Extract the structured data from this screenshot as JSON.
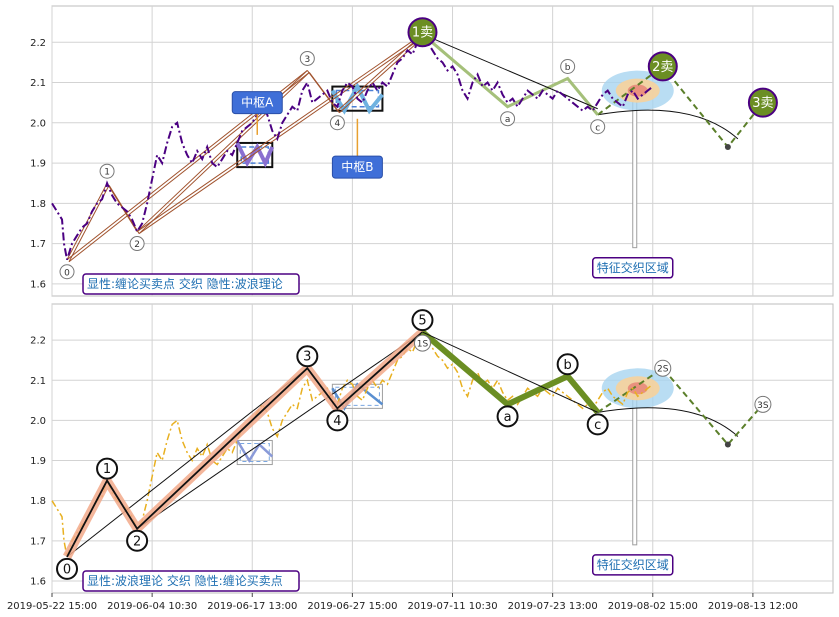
{
  "chart_data": {
    "type": "line",
    "x_ticks": [
      "2019-05-22 15:00",
      "2019-06-04 10:30",
      "2019-06-17 13:00",
      "2019-06-27 15:00",
      "2019-07-11 10:30",
      "2019-07-23 13:00",
      "2019-08-02 15:00",
      "2019-08-13 12:00"
    ],
    "x_range": [
      0,
      7.8
    ],
    "grid": true,
    "panels": [
      {
        "name": "top",
        "ylim": [
          1.57,
          2.29
        ],
        "y_ticks": [
          1.6,
          1.7,
          1.8,
          1.9,
          2.0,
          2.1,
          2.2
        ],
        "caption": "显性:缠论买卖点 交织 隐性:波浪理论",
        "price_color": "#4b0082",
        "price": [
          [
            0.0,
            1.8
          ],
          [
            0.05,
            1.78
          ],
          [
            0.1,
            1.76
          ],
          [
            0.12,
            1.7
          ],
          [
            0.15,
            1.66
          ],
          [
            0.2,
            1.7
          ],
          [
            0.25,
            1.72
          ],
          [
            0.3,
            1.74
          ],
          [
            0.35,
            1.75
          ],
          [
            0.4,
            1.78
          ],
          [
            0.45,
            1.8
          ],
          [
            0.5,
            1.81
          ],
          [
            0.55,
            1.85
          ],
          [
            0.6,
            1.82
          ],
          [
            0.65,
            1.8
          ],
          [
            0.7,
            1.79
          ],
          [
            0.75,
            1.78
          ],
          [
            0.8,
            1.76
          ],
          [
            0.85,
            1.73
          ],
          [
            0.9,
            1.75
          ],
          [
            0.95,
            1.8
          ],
          [
            1.0,
            1.86
          ],
          [
            1.05,
            1.92
          ],
          [
            1.1,
            1.9
          ],
          [
            1.15,
            1.95
          ],
          [
            1.2,
            1.99
          ],
          [
            1.25,
            2.0
          ],
          [
            1.3,
            1.95
          ],
          [
            1.35,
            1.92
          ],
          [
            1.4,
            1.9
          ],
          [
            1.45,
            1.93
          ],
          [
            1.5,
            1.91
          ],
          [
            1.55,
            1.94
          ],
          [
            1.6,
            1.9
          ],
          [
            1.65,
            1.89
          ],
          [
            1.7,
            1.91
          ],
          [
            1.75,
            1.93
          ],
          [
            1.8,
            1.92
          ],
          [
            1.85,
            1.95
          ],
          [
            1.9,
            1.98
          ],
          [
            1.95,
            1.99
          ],
          [
            2.0,
            2.0
          ],
          [
            2.05,
            2.02
          ],
          [
            2.1,
            2.04
          ],
          [
            2.15,
            2.02
          ],
          [
            2.2,
            1.98
          ],
          [
            2.25,
            1.96
          ],
          [
            2.3,
            2.0
          ],
          [
            2.35,
            2.02
          ],
          [
            2.4,
            2.04
          ],
          [
            2.45,
            2.03
          ],
          [
            2.5,
            2.08
          ],
          [
            2.55,
            2.1
          ],
          [
            2.6,
            2.05
          ],
          [
            2.65,
            2.06
          ],
          [
            2.7,
            2.07
          ],
          [
            2.75,
            2.08
          ],
          [
            2.8,
            2.05
          ],
          [
            2.85,
            2.04
          ],
          [
            2.9,
            2.08
          ],
          [
            2.95,
            2.1
          ],
          [
            3.0,
            2.09
          ],
          [
            3.05,
            2.06
          ],
          [
            3.1,
            2.05
          ],
          [
            3.15,
            2.08
          ],
          [
            3.2,
            2.1
          ],
          [
            3.25,
            2.08
          ],
          [
            3.3,
            2.1
          ],
          [
            3.35,
            2.09
          ],
          [
            3.4,
            2.12
          ],
          [
            3.45,
            2.15
          ],
          [
            3.5,
            2.16
          ],
          [
            3.55,
            2.18
          ],
          [
            3.6,
            2.17
          ],
          [
            3.65,
            2.2
          ],
          [
            3.7,
            2.22
          ],
          [
            3.75,
            2.2
          ],
          [
            3.8,
            2.18
          ],
          [
            3.85,
            2.16
          ],
          [
            3.9,
            2.15
          ],
          [
            3.95,
            2.13
          ],
          [
            4.0,
            2.14
          ],
          [
            4.05,
            2.12
          ],
          [
            4.1,
            2.08
          ],
          [
            4.15,
            2.06
          ],
          [
            4.2,
            2.1
          ],
          [
            4.25,
            2.12
          ],
          [
            4.3,
            2.09
          ],
          [
            4.35,
            2.1
          ],
          [
            4.4,
            2.08
          ],
          [
            4.45,
            2.1
          ],
          [
            4.5,
            2.07
          ],
          [
            4.55,
            2.05
          ],
          [
            4.6,
            2.06
          ],
          [
            4.65,
            2.04
          ],
          [
            4.7,
            2.06
          ],
          [
            4.75,
            2.08
          ],
          [
            4.8,
            2.07
          ],
          [
            4.85,
            2.06
          ],
          [
            4.9,
            2.08
          ],
          [
            4.95,
            2.07
          ],
          [
            5.0,
            2.06
          ],
          [
            5.05,
            2.08
          ],
          [
            5.1,
            2.07
          ],
          [
            5.15,
            2.06
          ],
          [
            5.2,
            2.05
          ],
          [
            5.25,
            2.04
          ],
          [
            5.3,
            2.03
          ],
          [
            5.35,
            2.04
          ],
          [
            5.4,
            2.03
          ],
          [
            5.45,
            2.05
          ],
          [
            5.5,
            2.07
          ],
          [
            5.55,
            2.08
          ],
          [
            5.6,
            2.06
          ],
          [
            5.65,
            2.05
          ],
          [
            5.7,
            2.04
          ],
          [
            5.75,
            2.07
          ],
          [
            5.8,
            2.08
          ],
          [
            5.85,
            2.06
          ],
          [
            5.9,
            2.07
          ],
          [
            5.95,
            2.08
          ],
          [
            6.0,
            2.09
          ]
        ],
        "wave_points": [
          {
            "label": "0",
            "x": 0.15,
            "y": 1.66
          },
          {
            "label": "1",
            "x": 0.55,
            "y": 1.85
          },
          {
            "label": "2",
            "x": 0.85,
            "y": 1.73
          },
          {
            "label": "3",
            "x": 2.55,
            "y": 2.13
          },
          {
            "label": "4",
            "x": 2.85,
            "y": 2.03
          },
          {
            "label": "5",
            "x": 3.7,
            "y": 2.22
          },
          {
            "label": "a",
            "x": 4.55,
            "y": 2.04
          },
          {
            "label": "b",
            "x": 5.15,
            "y": 2.11
          },
          {
            "label": "c",
            "x": 5.45,
            "y": 2.02
          }
        ],
        "sell_points": [
          {
            "label": "1卖",
            "x": 3.7,
            "y": 2.21
          },
          {
            "label": "2卖",
            "x": 6.1,
            "y": 2.14
          },
          {
            "label": "3卖",
            "x": 7.1,
            "y": 2.05
          }
        ],
        "zhongshu": [
          {
            "label": "中枢A",
            "x0": 1.85,
            "x1": 2.2,
            "y0": 1.89,
            "y1": 1.95
          },
          {
            "label": "中枢B",
            "x0": 2.8,
            "x1": 3.3,
            "y0": 2.03,
            "y1": 2.09
          }
        ],
        "feature_label": "特征交织区域"
      },
      {
        "name": "bottom",
        "ylim": [
          1.57,
          2.29
        ],
        "y_ticks": [
          1.6,
          1.7,
          1.8,
          1.9,
          2.0,
          2.1,
          2.2
        ],
        "caption": "显性:波浪理论 交织 隐性:缠论买卖点",
        "price_color": "#e8b020",
        "wave_points": [
          {
            "label": "0",
            "x": 0.15,
            "y": 1.66
          },
          {
            "label": "1",
            "x": 0.55,
            "y": 1.85
          },
          {
            "label": "2",
            "x": 0.85,
            "y": 1.73
          },
          {
            "label": "3",
            "x": 2.55,
            "y": 2.13
          },
          {
            "label": "4",
            "x": 2.85,
            "y": 2.03
          },
          {
            "label": "5",
            "x": 3.7,
            "y": 2.22
          },
          {
            "label": "a",
            "x": 4.55,
            "y": 2.04
          },
          {
            "label": "b",
            "x": 5.15,
            "y": 2.11
          },
          {
            "label": "c",
            "x": 5.45,
            "y": 2.02
          }
        ],
        "sell_points": [
          {
            "label": "1S",
            "x": 3.7,
            "y": 2.2
          },
          {
            "label": "2S",
            "x": 6.1,
            "y": 2.13
          },
          {
            "label": "3S",
            "x": 7.1,
            "y": 2.04
          }
        ],
        "feature_label": "特征交织区域"
      }
    ]
  }
}
